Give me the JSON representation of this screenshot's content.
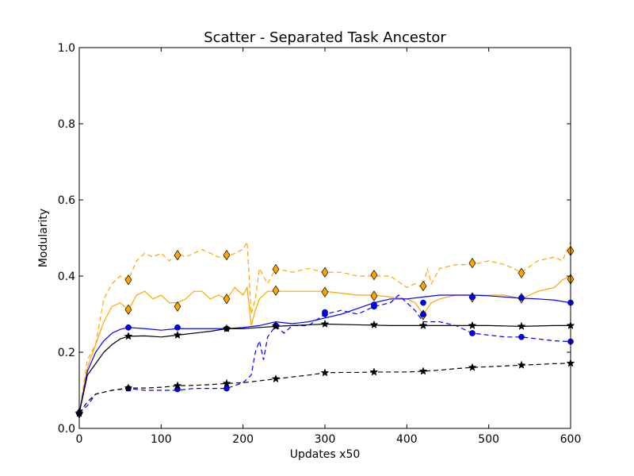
{
  "chart_data": {
    "type": "line",
    "title": "Scatter - Separated Task Ancestor",
    "xlabel": "Updates x50",
    "ylabel": "Modularity",
    "xlim": [
      0,
      600
    ],
    "ylim": [
      0,
      1.0
    ],
    "xticks": [
      0,
      100,
      200,
      300,
      400,
      500,
      600
    ],
    "yticks": [
      0.0,
      0.2,
      0.4,
      0.6,
      0.8,
      1.0
    ],
    "xtick_labels": [
      "0",
      "100",
      "200",
      "300",
      "400",
      "500",
      "600"
    ],
    "ytick_labels": [
      "0.0",
      "0.2",
      "0.4",
      "0.6",
      "0.8",
      "1.0"
    ],
    "grid": false,
    "series": [
      {
        "color": "#FFA500",
        "dash": true,
        "marker": "diamond",
        "x": [
          0,
          10,
          20,
          30,
          40,
          50,
          60,
          70,
          80,
          90,
          100,
          110,
          120,
          130,
          140,
          150,
          160,
          170,
          180,
          190,
          200,
          205,
          210,
          215,
          220,
          230,
          240,
          260,
          280,
          300,
          320,
          340,
          360,
          380,
          400,
          410,
          420,
          425,
          430,
          440,
          460,
          480,
          500,
          520,
          540,
          560,
          580,
          590,
          600
        ],
        "y": [
          0.04,
          0.18,
          0.22,
          0.34,
          0.38,
          0.4,
          0.39,
          0.44,
          0.46,
          0.45,
          0.46,
          0.44,
          0.46,
          0.45,
          0.46,
          0.47,
          0.46,
          0.45,
          0.45,
          0.46,
          0.47,
          0.49,
          0.3,
          0.34,
          0.42,
          0.38,
          0.42,
          0.41,
          0.42,
          0.41,
          0.41,
          0.4,
          0.4,
          0.4,
          0.37,
          0.38,
          0.37,
          0.42,
          0.38,
          0.42,
          0.43,
          0.43,
          0.44,
          0.43,
          0.41,
          0.44,
          0.45,
          0.44,
          0.49
        ],
        "marker_x": [
          0,
          60,
          120,
          180,
          240,
          300,
          360,
          420,
          480,
          540,
          600
        ],
        "marker_y": [
          0.04,
          0.39,
          0.455,
          0.455,
          0.418,
          0.41,
          0.403,
          0.374,
          0.434,
          0.408,
          0.466
        ]
      },
      {
        "color": "#FFA500",
        "dash": false,
        "marker": "diamond",
        "x": [
          0,
          10,
          20,
          30,
          40,
          50,
          60,
          70,
          80,
          90,
          100,
          110,
          120,
          130,
          140,
          150,
          160,
          170,
          180,
          190,
          200,
          205,
          210,
          215,
          220,
          230,
          240,
          260,
          280,
          300,
          320,
          340,
          360,
          380,
          400,
          410,
          420,
          430,
          440,
          460,
          480,
          500,
          520,
          540,
          560,
          580,
          590,
          600
        ],
        "y": [
          0.04,
          0.16,
          0.22,
          0.28,
          0.32,
          0.33,
          0.31,
          0.35,
          0.36,
          0.34,
          0.35,
          0.33,
          0.33,
          0.34,
          0.36,
          0.36,
          0.34,
          0.35,
          0.34,
          0.37,
          0.35,
          0.37,
          0.27,
          0.31,
          0.34,
          0.36,
          0.36,
          0.36,
          0.36,
          0.36,
          0.355,
          0.35,
          0.35,
          0.345,
          0.34,
          0.33,
          0.3,
          0.33,
          0.34,
          0.35,
          0.35,
          0.35,
          0.35,
          0.34,
          0.36,
          0.37,
          0.39,
          0.4
        ],
        "marker_x": [
          0,
          60,
          120,
          180,
          240,
          300,
          360,
          420,
          480,
          540,
          600
        ],
        "marker_y": [
          0.04,
          0.312,
          0.32,
          0.34,
          0.362,
          0.358,
          0.348,
          0.298,
          0.344,
          0.342,
          0.392
        ]
      },
      {
        "color": "#0000FF",
        "dash": false,
        "marker": "circle",
        "x": [
          0,
          10,
          20,
          30,
          40,
          50,
          60,
          80,
          100,
          120,
          140,
          160,
          180,
          200,
          220,
          240,
          260,
          280,
          300,
          320,
          340,
          360,
          380,
          400,
          420,
          440,
          460,
          480,
          500,
          520,
          540,
          560,
          580,
          600
        ],
        "y": [
          0.04,
          0.15,
          0.2,
          0.23,
          0.25,
          0.26,
          0.265,
          0.262,
          0.258,
          0.262,
          0.262,
          0.262,
          0.262,
          0.265,
          0.27,
          0.28,
          0.275,
          0.28,
          0.29,
          0.3,
          0.315,
          0.33,
          0.34,
          0.34,
          0.345,
          0.35,
          0.35,
          0.35,
          0.348,
          0.345,
          0.342,
          0.34,
          0.337,
          0.33
        ],
        "marker_x": [
          0,
          60,
          120,
          180,
          240,
          300,
          360,
          420,
          480,
          540,
          600
        ],
        "marker_y": [
          0.04,
          0.265,
          0.265,
          0.262,
          0.27,
          0.3,
          0.32,
          0.33,
          0.345,
          0.343,
          0.33
        ]
      },
      {
        "color": "#0000FF",
        "dash": true,
        "marker": "circle",
        "x": [
          0,
          10,
          20,
          40,
          60,
          80,
          100,
          120,
          140,
          160,
          180,
          200,
          210,
          215,
          220,
          225,
          230,
          240,
          250,
          260,
          280,
          300,
          320,
          340,
          360,
          380,
          390,
          400,
          410,
          420,
          440,
          460,
          480,
          500,
          520,
          540,
          560,
          580,
          600
        ],
        "y": [
          0.04,
          0.06,
          0.09,
          0.1,
          0.105,
          0.1,
          0.1,
          0.1,
          0.105,
          0.105,
          0.105,
          0.12,
          0.14,
          0.2,
          0.23,
          0.18,
          0.24,
          0.27,
          0.25,
          0.27,
          0.27,
          0.3,
          0.31,
          0.3,
          0.32,
          0.33,
          0.35,
          0.33,
          0.31,
          0.28,
          0.28,
          0.27,
          0.25,
          0.245,
          0.24,
          0.24,
          0.235,
          0.23,
          0.228
        ],
        "marker_x": [
          0,
          60,
          120,
          180,
          240,
          300,
          360,
          420,
          480,
          540,
          600
        ],
        "marker_y": [
          0.04,
          0.105,
          0.103,
          0.105,
          0.27,
          0.305,
          0.325,
          0.3,
          0.25,
          0.24,
          0.228
        ]
      },
      {
        "color": "#000000",
        "dash": false,
        "marker": "star",
        "x": [
          0,
          10,
          20,
          30,
          40,
          50,
          60,
          80,
          100,
          120,
          140,
          160,
          180,
          200,
          220,
          240,
          260,
          280,
          300,
          340,
          380,
          420,
          460,
          500,
          540,
          580,
          600
        ],
        "y": [
          0.04,
          0.14,
          0.17,
          0.2,
          0.22,
          0.235,
          0.242,
          0.243,
          0.24,
          0.245,
          0.25,
          0.255,
          0.262,
          0.262,
          0.265,
          0.268,
          0.27,
          0.272,
          0.274,
          0.272,
          0.27,
          0.27,
          0.27,
          0.27,
          0.268,
          0.27,
          0.27
        ],
        "marker_x": [
          0,
          60,
          120,
          180,
          240,
          300,
          360,
          420,
          480,
          540,
          600
        ],
        "marker_y": [
          0.04,
          0.242,
          0.245,
          0.262,
          0.268,
          0.274,
          0.272,
          0.27,
          0.27,
          0.268,
          0.27
        ]
      },
      {
        "color": "#000000",
        "dash": true,
        "marker": "star",
        "x": [
          0,
          10,
          20,
          40,
          60,
          80,
          100,
          120,
          140,
          160,
          180,
          200,
          220,
          240,
          260,
          280,
          300,
          320,
          340,
          360,
          380,
          400,
          420,
          440,
          460,
          480,
          500,
          520,
          540,
          560,
          580,
          600
        ],
        "y": [
          0.04,
          0.07,
          0.09,
          0.1,
          0.106,
          0.106,
          0.108,
          0.112,
          0.113,
          0.115,
          0.118,
          0.12,
          0.125,
          0.13,
          0.135,
          0.14,
          0.146,
          0.147,
          0.147,
          0.148,
          0.148,
          0.148,
          0.15,
          0.153,
          0.157,
          0.16,
          0.162,
          0.164,
          0.166,
          0.168,
          0.17,
          0.171
        ],
        "marker_x": [
          0,
          60,
          120,
          180,
          240,
          300,
          360,
          420,
          480,
          540,
          600
        ],
        "marker_y": [
          0.04,
          0.106,
          0.112,
          0.118,
          0.13,
          0.146,
          0.148,
          0.15,
          0.16,
          0.166,
          0.171
        ]
      }
    ]
  }
}
